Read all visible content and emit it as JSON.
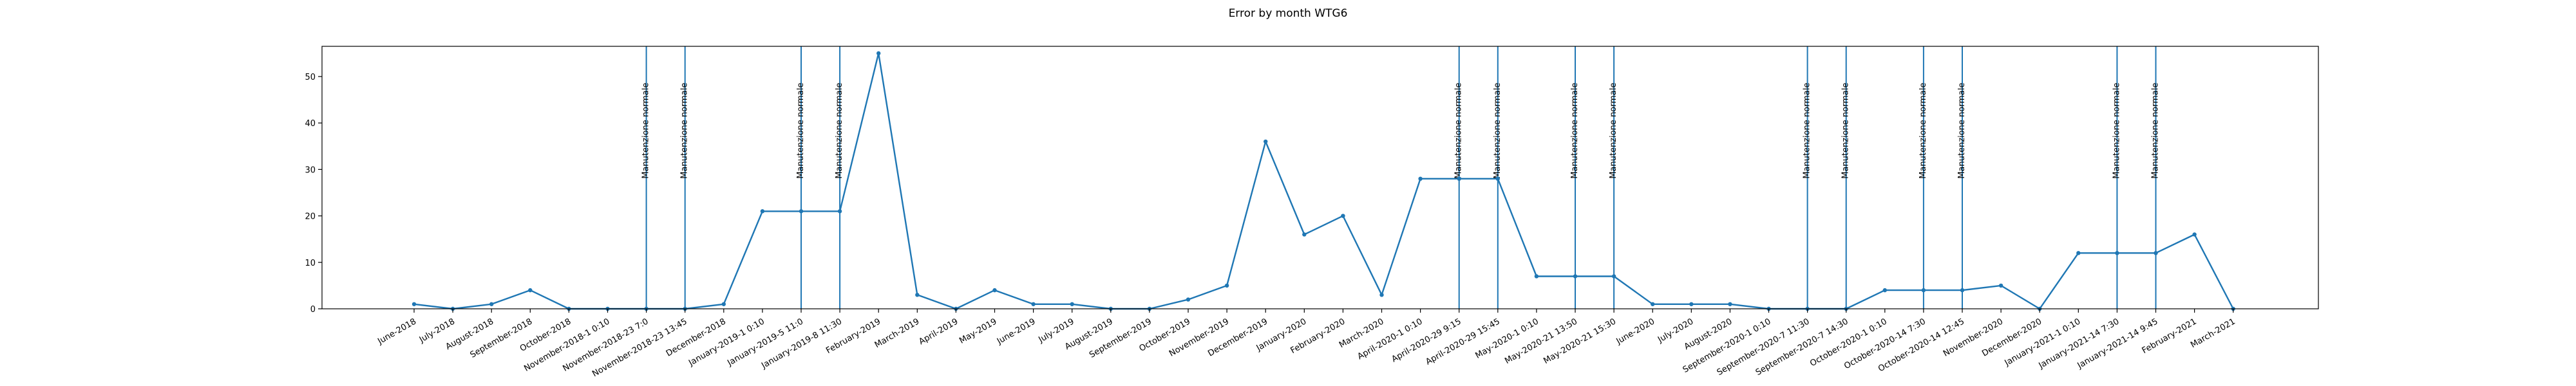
{
  "chart_data": {
    "type": "line",
    "title": "Error by month WTG6",
    "xlabel": "",
    "ylabel": "",
    "ylim": [
      0,
      56.5
    ],
    "yticks": [
      0,
      10,
      20,
      30,
      40,
      50
    ],
    "grid": false,
    "line_color": "#1f77b4",
    "categories": [
      "June-2018",
      "July-2018",
      "August-2018",
      "September-2018",
      "October-2018",
      "November-2018-1 0:10",
      "November-2018-23 7:0",
      "November-2018-23 13:45",
      "December-2018",
      "January-2019-1 0:10",
      "January-2019-5 11:0",
      "January-2019-8 11:30",
      "February-2019",
      "March-2019",
      "April-2019",
      "May-2019",
      "June-2019",
      "July-2019",
      "August-2019",
      "September-2019",
      "October-2019",
      "November-2019",
      "December-2019",
      "January-2020",
      "February-2020",
      "March-2020",
      "April-2020-1 0:10",
      "April-2020-29 9:15",
      "April-2020-29 15:45",
      "May-2020-1 0:10",
      "May-2020-21 13:50",
      "May-2020-21 15:30",
      "June-2020",
      "July-2020",
      "August-2020",
      "September-2020-1 0:10",
      "September-2020-7 11:30",
      "September-2020-7 14:30",
      "October-2020-1 0:10",
      "October-2020-14 7:30",
      "October-2020-14 12:45",
      "November-2020",
      "December-2020",
      "January-2021-1 0:10",
      "January-2021-14 7:30",
      "January-2021-14 9:45",
      "February-2021",
      "March-2021"
    ],
    "series": [
      {
        "values": [
          1,
          0,
          1,
          4,
          0,
          0,
          0,
          0,
          1,
          21,
          21,
          21,
          55,
          3,
          0,
          4,
          1,
          1,
          0,
          0,
          2,
          5,
          36,
          16,
          20,
          3,
          28,
          28,
          28,
          7,
          7,
          7,
          1,
          1,
          1,
          0,
          0,
          0,
          4,
          4,
          4,
          5,
          0,
          12,
          12,
          12,
          16,
          0
        ]
      }
    ],
    "vlines": [
      {
        "category": "November-2018-23 7:0",
        "label": "Manutenzione normale"
      },
      {
        "category": "November-2018-23 13:45",
        "label": "Manutenzione normale"
      },
      {
        "category": "January-2019-5 11:0",
        "label": "Manutenzione normale"
      },
      {
        "category": "January-2019-8 11:30",
        "label": "Manutenzione normale"
      },
      {
        "category": "April-2020-29 9:15",
        "label": "Manutenzione normale"
      },
      {
        "category": "April-2020-29 15:45",
        "label": "Manutenzione normale"
      },
      {
        "category": "May-2020-21 13:50",
        "label": "Manutenzione normale"
      },
      {
        "category": "May-2020-21 15:30",
        "label": "Manutenzione normale"
      },
      {
        "category": "September-2020-7 11:30",
        "label": "Manutenzione normale"
      },
      {
        "category": "September-2020-7 14:30",
        "label": "Manutenzione normale"
      },
      {
        "category": "October-2020-14 7:30",
        "label": "Manutenzione normale"
      },
      {
        "category": "October-2020-14 12:45",
        "label": "Manutenzione normale"
      },
      {
        "category": "January-2021-14 7:30",
        "label": "Manutenzione normale"
      },
      {
        "category": "January-2021-14 9:45",
        "label": "Manutenzione normale"
      }
    ]
  }
}
